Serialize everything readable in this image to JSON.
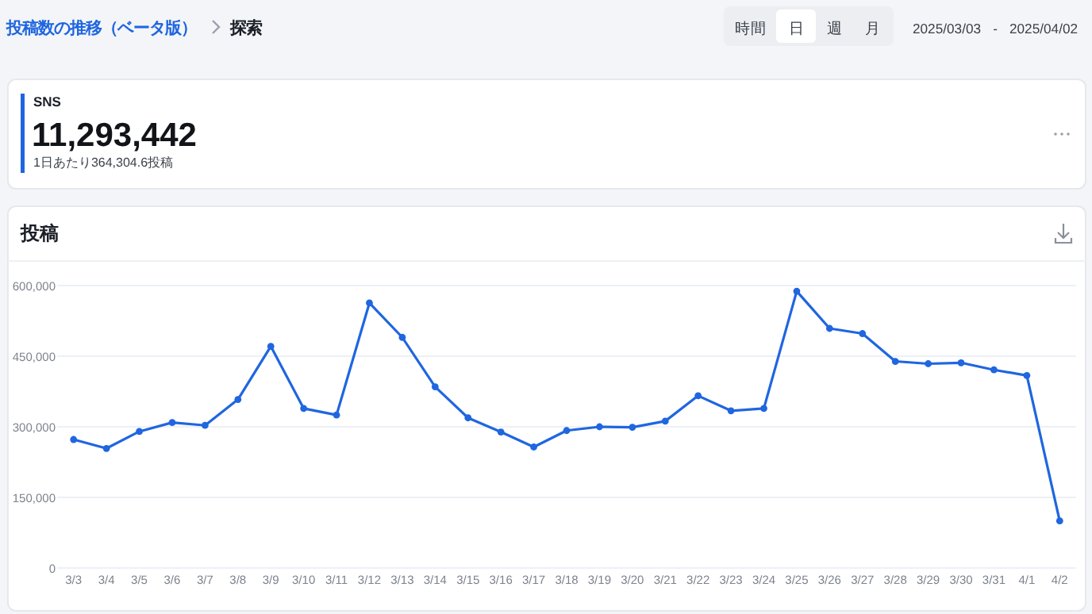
{
  "chart_data": [
    {
      "type": "other",
      "title": "SNS",
      "annotations": [
        "投稿数の推移（ベータ版）",
        "探索",
        "時間",
        "日",
        "週",
        "月",
        "2025/03/03",
        "-",
        "2025/04/02",
        "11,293,442",
        "1日あたり364,304.6投稿"
      ]
    },
    {
      "type": "line",
      "title": "投稿",
      "categories": [
        "3/3",
        "3/4",
        "3/5",
        "3/6",
        "3/7",
        "3/8",
        "3/9",
        "3/10",
        "3/11",
        "3/12",
        "3/13",
        "3/14",
        "3/15",
        "3/16",
        "3/17",
        "3/18",
        "3/19",
        "3/20",
        "3/21",
        "3/22",
        "3/23",
        "3/24",
        "3/25",
        "3/26",
        "3/27",
        "3/28",
        "3/29",
        "3/30",
        "3/31",
        "4/1",
        "4/2"
      ],
      "series": [
        {
          "color": "#1f66e0",
          "values": [
            273000,
            254000,
            290000,
            309000,
            303000,
            358000,
            471000,
            339000,
            325000,
            563000,
            490000,
            385000,
            319000,
            289000,
            257000,
            292000,
            300000,
            299000,
            312000,
            366000,
            334000,
            339000,
            588000,
            509000,
            498000,
            439000,
            434000,
            436000,
            421000,
            409000,
            100000
          ]
        }
      ],
      "ylim": [
        0,
        600000
      ],
      "yticks": [
        0,
        {
          "value": 150000,
          "label": "150,000"
        },
        {
          "value": 300000,
          "label": "300,000"
        },
        {
          "value": 450000,
          "label": "450,000"
        },
        {
          "value": 600000,
          "label": "600,000"
        }
      ],
      "grid": "y",
      "marker": "circle",
      "line_style": "solid"
    }
  ]
}
